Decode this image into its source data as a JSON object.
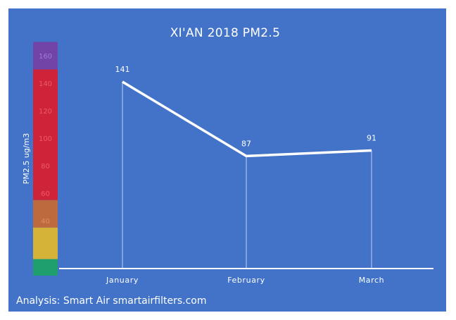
{
  "chart_data": {
    "type": "line",
    "title": "XI'AN 2018 PM2.5",
    "ylabel": "PM2.5 ug/m3",
    "xlabel": "",
    "categories": [
      "January",
      "February",
      "March"
    ],
    "series": [
      {
        "values": [
          141,
          87,
          91
        ]
      }
    ],
    "data_labels": [
      "141",
      "87",
      "91"
    ],
    "ylim": [
      0,
      170
    ],
    "grid": false,
    "aqi_bands": [
      {
        "from": 0,
        "to": 12,
        "color": "#1f9e6e"
      },
      {
        "from": 12,
        "to": 35,
        "color": "#d4b338"
      },
      {
        "from": 35,
        "to": 55,
        "color": "#bd6b3e"
      },
      {
        "from": 55,
        "to": 150,
        "color": "#cf2339"
      },
      {
        "from": 150,
        "to": 170,
        "color": "#7244a8"
      }
    ],
    "scale_ticks": [
      {
        "value": 40,
        "label": "40"
      },
      {
        "value": 60,
        "label": "60"
      },
      {
        "value": 80,
        "label": "80"
      },
      {
        "value": 100,
        "label": "100"
      },
      {
        "value": 120,
        "label": "120"
      },
      {
        "value": 140,
        "label": "140"
      },
      {
        "value": 160,
        "label": "160"
      }
    ],
    "colors": {
      "background": "#4273c8",
      "line": "#ffffff"
    }
  },
  "footer": "Analysis: Smart Air smartairfilters.com"
}
